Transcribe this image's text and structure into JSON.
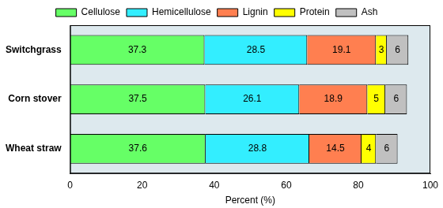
{
  "chart_data": {
    "type": "bar",
    "orientation": "horizontal",
    "stacked": true,
    "data_labels": true,
    "grid": false,
    "legend": "top",
    "x_label": "Percent (%)",
    "categories": [
      "Switchgrass",
      "Corn stover",
      "Wheat straw"
    ],
    "series": [
      {
        "name": "Cellulose",
        "color": "#66ff66",
        "values": [
          37.3,
          37.5,
          37.6
        ]
      },
      {
        "name": "Hemicellulose",
        "color": "#33eeff",
        "values": [
          28.5,
          26.1,
          28.8
        ]
      },
      {
        "name": "Lignin",
        "color": "#ff7f50",
        "values": [
          19.1,
          18.9,
          14.5
        ]
      },
      {
        "name": "Protein",
        "color": "#ffff00",
        "values": [
          3,
          5,
          4
        ]
      },
      {
        "name": "Ash",
        "color": "#c0c0c0",
        "values": [
          6,
          6,
          6
        ]
      }
    ],
    "xlim": [
      0,
      100
    ],
    "xticks": [
      0,
      20,
      40,
      60,
      80,
      100
    ]
  }
}
